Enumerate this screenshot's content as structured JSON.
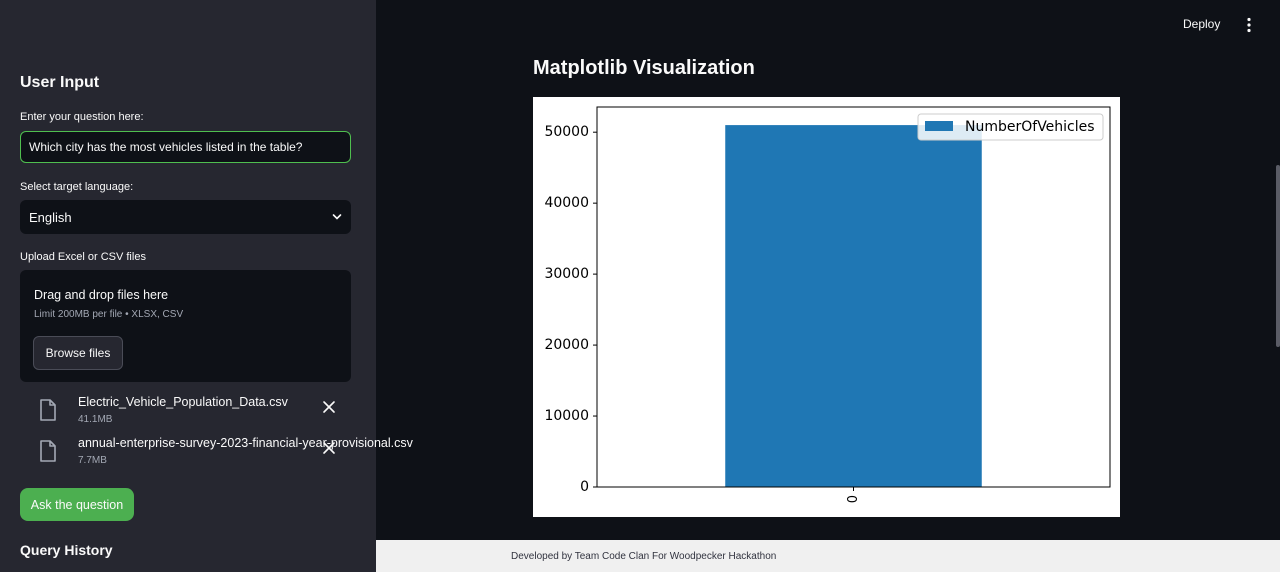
{
  "sidebar": {
    "title": "User Input",
    "question_label": "Enter your question here:",
    "question_value": "Which city has the most vehicles listed in the table?",
    "language_label": "Select target language:",
    "language_value": "English",
    "upload_label": "Upload Excel or CSV files",
    "dropzone_title": "Drag and drop files here",
    "dropzone_sub": "Limit 200MB per file • XLSX, CSV",
    "browse_label": "Browse files",
    "files": [
      {
        "name": "Electric_Vehicle_Population_Data.csv",
        "size": "41.1MB"
      },
      {
        "name": "annual-enterprise-survey-2023-financial-year-provisional.csv",
        "size": "7.7MB"
      }
    ],
    "ask_label": "Ask the question",
    "history_title": "Query History"
  },
  "header": {
    "deploy_label": "Deploy"
  },
  "main": {
    "title": "Matplotlib Visualization"
  },
  "footer": {
    "text": "Developed by Team Code Clan For Woodpecker Hackathon"
  },
  "colors": {
    "accent": "#4caf50",
    "bar": "#1f77b4"
  },
  "chart_data": {
    "type": "bar",
    "categories": [
      "0"
    ],
    "series": [
      {
        "name": "NumberOfVehicles",
        "values": [
          51000
        ]
      }
    ],
    "yticks": [
      0,
      10000,
      20000,
      30000,
      40000,
      50000
    ],
    "ylim": [
      0,
      53550
    ],
    "legend": "top-right"
  }
}
